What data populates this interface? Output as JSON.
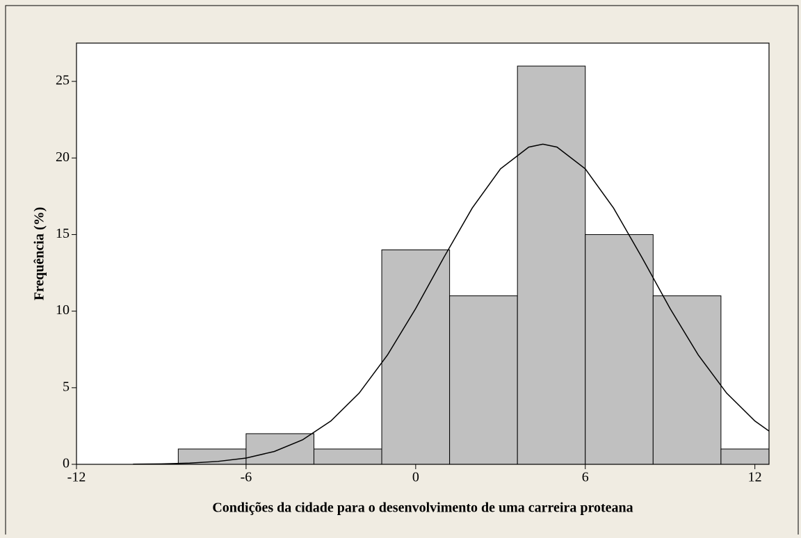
{
  "chart_data": {
    "type": "histogram",
    "xlabel": "Condições da cidade para o desenvolvimento de uma carreira proteana",
    "ylabel": "Frequência (%)",
    "bins": [
      -8.4,
      -6,
      -3.6,
      -1.2,
      1.2,
      3.6,
      6,
      8.4,
      10.8,
      13.2
    ],
    "values": [
      1,
      2,
      1,
      14,
      11,
      26,
      15,
      11,
      1
    ],
    "color": "#c0c0c0",
    "curve": {
      "x": [
        -10,
        -9,
        -8,
        -7,
        -6,
        -5,
        -4,
        -3,
        -2,
        -1,
        0,
        1,
        2,
        3,
        4,
        4.5,
        5,
        6,
        7,
        8,
        9,
        10,
        11,
        12,
        12.5
      ],
      "values": [
        0.01,
        0.03,
        0.08,
        0.19,
        0.41,
        0.84,
        1.6,
        2.83,
        4.65,
        7.13,
        10.17,
        13.52,
        16.73,
        19.29,
        20.71,
        20.9,
        20.71,
        19.29,
        16.73,
        13.52,
        10.17,
        7.13,
        4.65,
        2.83,
        2.17
      ],
      "color": "#000000"
    },
    "xlim": [
      -12,
      12.5
    ],
    "xticks": [
      -12,
      -6,
      0,
      6,
      12
    ],
    "ylim": [
      0,
      27.5
    ],
    "yticks": [
      0,
      5,
      10,
      15,
      20,
      25
    ]
  }
}
